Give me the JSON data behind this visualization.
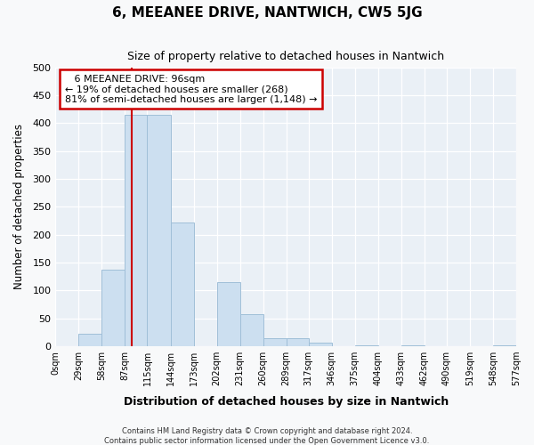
{
  "title": "6, MEEANEE DRIVE, NANTWICH, CW5 5JG",
  "subtitle": "Size of property relative to detached houses in Nantwich",
  "xlabel": "Distribution of detached houses by size in Nantwich",
  "ylabel": "Number of detached properties",
  "bar_color": "#ccdff0",
  "bar_edge_color": "#a0bfd8",
  "fig_background": "#f8f9fa",
  "ax_background": "#eaf0f6",
  "grid_color": "#ffffff",
  "vline_color": "#cc0000",
  "bin_edges": [
    0,
    29,
    58,
    87,
    115,
    144,
    173,
    202,
    231,
    260,
    289,
    317,
    346,
    375,
    404,
    433,
    462,
    490,
    519,
    548,
    577
  ],
  "bin_labels": [
    "0sqm",
    "29sqm",
    "58sqm",
    "87sqm",
    "115sqm",
    "144sqm",
    "173sqm",
    "202sqm",
    "231sqm",
    "260sqm",
    "289sqm",
    "317sqm",
    "346sqm",
    "375sqm",
    "404sqm",
    "433sqm",
    "462sqm",
    "490sqm",
    "519sqm",
    "548sqm",
    "577sqm"
  ],
  "counts": [
    0,
    22,
    138,
    415,
    415,
    222,
    0,
    115,
    57,
    15,
    15,
    7,
    0,
    2,
    0,
    2,
    0,
    0,
    0,
    2
  ],
  "vline_x": 96,
  "annotation_line1": "6 MEEANEE DRIVE: 96sqm",
  "annotation_line2": "← 19% of detached houses are smaller (268)",
  "annotation_line3": "81% of semi-detached houses are larger (1,148) →",
  "ylim": [
    0,
    500
  ],
  "yticks": [
    0,
    50,
    100,
    150,
    200,
    250,
    300,
    350,
    400,
    450,
    500
  ],
  "footer1": "Contains HM Land Registry data © Crown copyright and database right 2024.",
  "footer2": "Contains public sector information licensed under the Open Government Licence v3.0."
}
